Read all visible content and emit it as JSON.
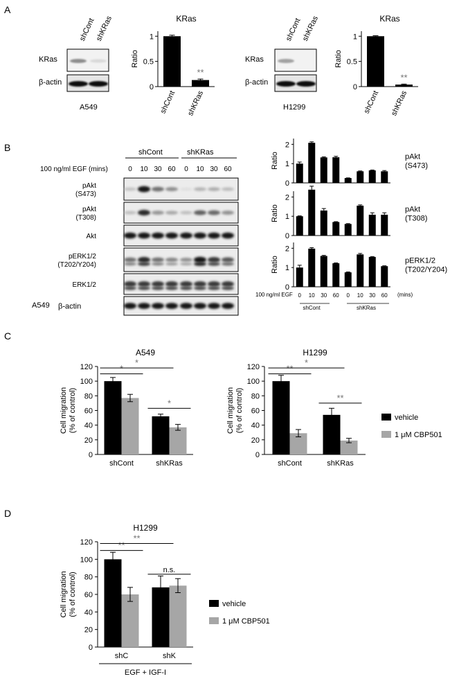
{
  "panels": {
    "a": "A",
    "b": "B",
    "c": "C",
    "d": "D"
  },
  "panel_a": {
    "blots": [
      {
        "lanes": [
          "shCont",
          "shKRas"
        ],
        "rows": [
          "KRas",
          "β-actin"
        ],
        "cell_line": "A549"
      },
      {
        "lanes": [
          "shCont",
          "shKRas"
        ],
        "rows": [
          "KRas",
          "β-actin"
        ],
        "cell_line": "H1299"
      }
    ]
  },
  "panel_b": {
    "groups": [
      "shCont",
      "shKRas"
    ],
    "treatment": "100 ng/ml EGF (mins)",
    "times": [
      "0",
      "10",
      "30",
      "60",
      "0",
      "10",
      "30",
      "60"
    ],
    "rows": [
      {
        "label_lines": [
          "pAkt",
          "(S473)"
        ]
      },
      {
        "label_lines": [
          "pAkt",
          "(T308)"
        ]
      },
      {
        "label_lines": [
          "Akt"
        ]
      },
      {
        "label_lines": [
          "pERK1/2",
          "(T202/Y204)"
        ]
      },
      {
        "label_lines": [
          "ERK1/2"
        ]
      },
      {
        "label_lines": [
          "β-actin"
        ]
      }
    ],
    "cell_line": "A549",
    "chart_axis": {
      "treatment": "100 ng/ml EGF",
      "times": [
        "0",
        "10",
        "30",
        "60",
        "0",
        "10",
        "30",
        "60"
      ],
      "unit": "(mins)",
      "groups": [
        "shCont",
        "shKRas"
      ]
    }
  },
  "chart_data": [
    {
      "type": "bar",
      "title": "KRas",
      "categories": [
        "shCont",
        "shKRas"
      ],
      "values": [
        1.0,
        0.13
      ],
      "errors": [
        0.02,
        0.02
      ],
      "ylabel": "Ratio",
      "ylim": [
        0,
        1.1
      ],
      "yticks": [
        0,
        0.5,
        1
      ],
      "annotations": [
        {
          "category": "shKRas",
          "text": "**"
        }
      ]
    },
    {
      "type": "bar",
      "title": "KRas",
      "categories": [
        "shCont",
        "shKRas"
      ],
      "values": [
        1.0,
        0.04
      ],
      "errors": [
        0.01,
        0.01
      ],
      "ylabel": "Ratio",
      "ylim": [
        0,
        1.1
      ],
      "yticks": [
        0,
        0.5,
        1
      ],
      "annotations": [
        {
          "category": "shKRas",
          "text": "**"
        }
      ]
    },
    {
      "type": "bar",
      "categories": [
        "0",
        "10",
        "30",
        "60",
        "0",
        "10",
        "30",
        "60"
      ],
      "values": [
        1.0,
        2.08,
        1.32,
        1.33,
        0.25,
        0.6,
        0.65,
        0.6
      ],
      "errors": [
        0.08,
        0.05,
        0.03,
        0.05,
        0.01,
        0.02,
        0.02,
        0.04
      ],
      "ylabel": "Ratio",
      "ylim": [
        0,
        2.3
      ],
      "yticks": [
        0,
        1,
        2
      ],
      "side_label_lines": [
        "pAkt",
        "(S473)"
      ]
    },
    {
      "type": "bar",
      "categories": [
        "0",
        "10",
        "30",
        "60",
        "0",
        "10",
        "30",
        "60"
      ],
      "values": [
        1.0,
        2.38,
        1.3,
        0.7,
        0.6,
        1.55,
        1.08,
        1.08
      ],
      "errors": [
        0.02,
        0.18,
        0.1,
        0.02,
        0.02,
        0.04,
        0.1,
        0.1
      ],
      "ylabel": "Ratio",
      "ylim": [
        0,
        2.3
      ],
      "yticks": [
        0,
        1,
        2
      ],
      "side_label_lines": [
        "pAkt",
        "(T308)"
      ]
    },
    {
      "type": "bar",
      "categories": [
        "0",
        "10",
        "30",
        "60",
        "0",
        "10",
        "30",
        "60"
      ],
      "values": [
        1.0,
        1.98,
        1.6,
        1.22,
        0.75,
        1.68,
        1.55,
        1.07
      ],
      "errors": [
        0.12,
        0.05,
        0.03,
        0.02,
        0.02,
        0.05,
        0.02,
        0.02
      ],
      "ylabel": "Ratio",
      "ylim": [
        0,
        2.3
      ],
      "yticks": [
        0,
        1,
        2
      ],
      "side_label_lines": [
        "pERK1/2",
        "(T202/Y204)"
      ]
    },
    {
      "type": "bar",
      "title": "A549",
      "categories": [
        "shCont",
        "shKRas"
      ],
      "series": [
        {
          "name": "vehicle",
          "values": [
            100,
            52
          ],
          "errors": [
            5,
            3
          ]
        },
        {
          "name": "1 μM CBP501",
          "values": [
            77,
            37
          ],
          "errors": [
            5,
            4
          ]
        }
      ],
      "ylabel_lines": [
        "Cell migration",
        "(% of control)"
      ],
      "ylim": [
        0,
        120
      ],
      "yticks": [
        0,
        20,
        40,
        60,
        80,
        100,
        120
      ],
      "significance": [
        {
          "from": [
            0,
            0
          ],
          "to": [
            0,
            1
          ],
          "y": 110,
          "text": "*"
        },
        {
          "from": [
            0,
            0
          ],
          "to": [
            1,
            0
          ],
          "y": 118,
          "text": "*"
        },
        {
          "from": [
            1,
            0
          ],
          "to": [
            1,
            1
          ],
          "y": 63,
          "text": "*"
        }
      ]
    },
    {
      "type": "bar",
      "title": "H1299",
      "categories": [
        "shCont",
        "shKRas"
      ],
      "series": [
        {
          "name": "vehicle",
          "values": [
            100,
            54
          ],
          "errors": [
            8,
            9
          ]
        },
        {
          "name": "1 μM CBP501",
          "values": [
            29,
            19
          ],
          "errors": [
            5,
            3
          ]
        }
      ],
      "ylabel_lines": [
        "Cell migration",
        "(% of control)"
      ],
      "ylim": [
        0,
        120
      ],
      "yticks": [
        0,
        20,
        40,
        60,
        80,
        100,
        120
      ],
      "significance": [
        {
          "from": [
            0,
            0
          ],
          "to": [
            0,
            1
          ],
          "y": 110,
          "text": "**"
        },
        {
          "from": [
            0,
            0
          ],
          "to": [
            1,
            0
          ],
          "y": 118,
          "text": "*"
        },
        {
          "from": [
            1,
            0
          ],
          "to": [
            1,
            1
          ],
          "y": 70,
          "text": "**"
        }
      ]
    },
    {
      "type": "bar",
      "title": "H1299",
      "categories": [
        "shC",
        "shK"
      ],
      "xlabel": "EGF + IGF-I",
      "series": [
        {
          "name": "vehicle",
          "values": [
            100,
            68
          ],
          "errors": [
            8,
            13
          ]
        },
        {
          "name": "1 μM CBP501",
          "values": [
            60,
            70
          ],
          "errors": [
            8,
            8
          ]
        }
      ],
      "ylabel_lines": [
        "Cell migration",
        "(% of control)"
      ],
      "ylim": [
        0,
        120
      ],
      "yticks": [
        0,
        20,
        40,
        60,
        80,
        100,
        120
      ],
      "significance": [
        {
          "from": [
            0,
            0
          ],
          "to": [
            0,
            1
          ],
          "y": 110,
          "text": "**"
        },
        {
          "from": [
            0,
            0
          ],
          "to": [
            1,
            0
          ],
          "y": 118,
          "text": "**"
        },
        {
          "from": [
            1,
            0
          ],
          "to": [
            1,
            1
          ],
          "y": 83,
          "text": "n.s."
        }
      ]
    }
  ],
  "legends": [
    {
      "items": [
        {
          "name": "vehicle",
          "color": "#000000"
        },
        {
          "name": "1 μM CBP501",
          "color": "#a6a6a6"
        }
      ]
    },
    {
      "items": [
        {
          "name": "vehicle",
          "color": "#000000"
        },
        {
          "name": "1 μM CBP501",
          "color": "#a6a6a6"
        }
      ]
    }
  ]
}
